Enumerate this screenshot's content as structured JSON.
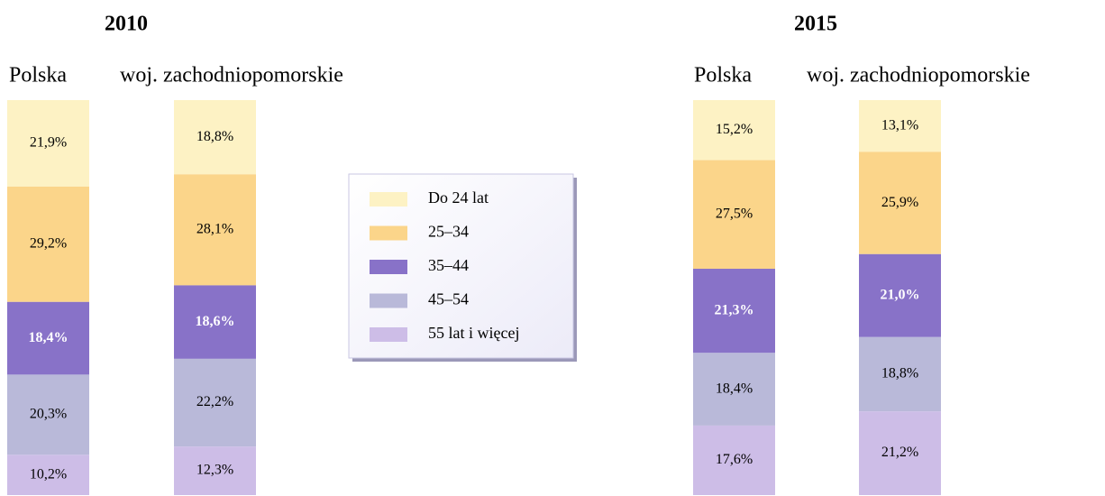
{
  "chart_data": [
    {
      "type": "bar",
      "stacked": true,
      "title": "2010",
      "categories": [
        "Polska",
        "woj. zachodniopomorskie"
      ],
      "series": [
        {
          "name": "Do 24 lat",
          "color": "#fdf2c4",
          "values": [
            21.9,
            18.8
          ],
          "value_labels": [
            "21,9%",
            "18,8%"
          ]
        },
        {
          "name": "25–34",
          "color": "#fbd58a",
          "values": [
            29.2,
            28.1
          ],
          "value_labels": [
            "29,2%",
            "28,1%"
          ]
        },
        {
          "name": "35–44",
          "color": "#8872c8",
          "values": [
            18.4,
            18.6
          ],
          "value_labels": [
            "18,4%",
            "18,6%"
          ]
        },
        {
          "name": "45–54",
          "color": "#b9b9d9",
          "values": [
            20.3,
            22.2
          ],
          "value_labels": [
            "20,3%",
            "22,2%"
          ]
        },
        {
          "name": "55 lat i więcej",
          "color": "#cdbde7",
          "values": [
            10.2,
            12.3
          ],
          "value_labels": [
            "10,2%",
            "12,3%"
          ]
        }
      ]
    },
    {
      "type": "bar",
      "stacked": true,
      "title": "2015",
      "categories": [
        "Polska",
        "woj. zachodniopomorskie"
      ],
      "series": [
        {
          "color": "#fdf2c4",
          "values": [
            15.2,
            13.1
          ],
          "value_labels": [
            "15,2%",
            "13,1%"
          ]
        },
        {
          "color": "#fbd58a",
          "values": [
            27.5,
            25.9
          ],
          "value_labels": [
            "27,5%",
            "25,9%"
          ]
        },
        {
          "color": "#8872c8",
          "values": [
            21.3,
            21.0
          ],
          "value_labels": [
            "21,3%",
            "21,0%"
          ]
        },
        {
          "color": "#b9b9d9",
          "values": [
            18.4,
            18.8
          ],
          "value_labels": [
            "18,4%",
            "18,8%"
          ]
        },
        {
          "color": "#cdbde7",
          "values": [
            17.6,
            21.2
          ],
          "value_labels": [
            "17,6%",
            "21,2%"
          ]
        }
      ]
    }
  ]
}
